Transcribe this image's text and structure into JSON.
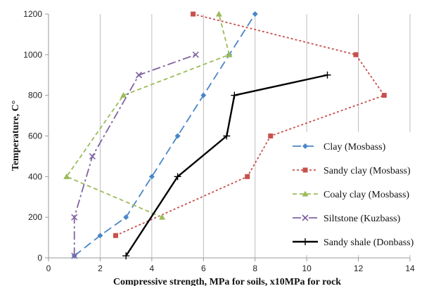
{
  "chart_data": {
    "type": "line",
    "title": "",
    "xlabel": "Compressive strength, MPa for soils, x10MPa for rock",
    "ylabel": "Temperature, C°",
    "xlim": [
      0,
      14
    ],
    "ylim": [
      0,
      1200
    ],
    "xticks": [
      0,
      2,
      4,
      6,
      8,
      10,
      12,
      14
    ],
    "yticks": [
      0,
      200,
      400,
      600,
      800,
      1000,
      1200
    ],
    "grid": "vertical",
    "legend": "right",
    "series": [
      {
        "name": "Clay (Mosbass)",
        "color": "#4a86c8",
        "dash": "long-dash",
        "marker": "diamond",
        "points": [
          [
            1,
            10
          ],
          [
            2,
            110
          ],
          [
            3,
            200
          ],
          [
            4,
            400
          ],
          [
            5,
            600
          ],
          [
            6,
            800
          ],
          [
            7,
            1000
          ],
          [
            8,
            1200
          ]
        ]
      },
      {
        "name": "Sandy clay (Mosbass)",
        "color": "#c8504b",
        "dash": "dot",
        "marker": "square",
        "points": [
          [
            2.6,
            110
          ],
          [
            7.7,
            400
          ],
          [
            8.6,
            600
          ],
          [
            13,
            800
          ],
          [
            11.9,
            1000
          ],
          [
            5.6,
            1200
          ]
        ]
      },
      {
        "name": "Coaly clay (Mosbass)",
        "color": "#9bbb59",
        "dash": "dash",
        "marker": "triangle",
        "points": [
          [
            4.4,
            200
          ],
          [
            0.7,
            400
          ],
          [
            2.9,
            800
          ],
          [
            7,
            1000
          ],
          [
            6.6,
            1200
          ]
        ]
      },
      {
        "name": "Siltstone (Kuzbass)",
        "color": "#8064a2",
        "dash": "dash-dot",
        "marker": "x",
        "points": [
          [
            1,
            10
          ],
          [
            1,
            200
          ],
          [
            1.7,
            500
          ],
          [
            3.5,
            900
          ],
          [
            5.7,
            1000
          ]
        ]
      },
      {
        "name": "Sandy shale (Donbass)",
        "color": "#000000",
        "dash": "solid",
        "marker": "plus",
        "points": [
          [
            3,
            10
          ],
          [
            5,
            400
          ],
          [
            6.9,
            600
          ],
          [
            7.2,
            800
          ],
          [
            10.8,
            900
          ]
        ]
      }
    ]
  }
}
